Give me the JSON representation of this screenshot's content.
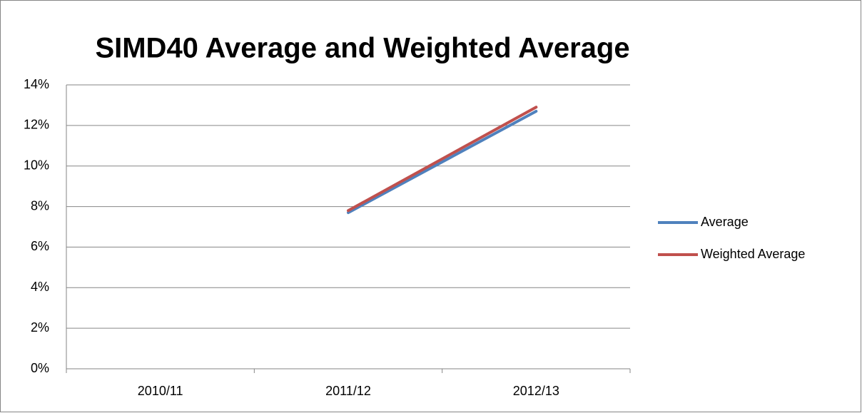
{
  "chart_data": {
    "type": "line",
    "title": "SIMD40 Average and Weighted Average",
    "categories": [
      "2010/11",
      "2011/12",
      "2012/13"
    ],
    "series": [
      {
        "name": "Average",
        "color": "#4f81bd",
        "values": [
          null,
          7.7,
          12.7
        ]
      },
      {
        "name": "Weighted Average",
        "color": "#c0504d",
        "values": [
          null,
          7.8,
          12.9
        ]
      }
    ],
    "ylim": [
      0,
      14
    ],
    "yticks": [
      {
        "value": 0,
        "label": "0%"
      },
      {
        "value": 2,
        "label": "2%"
      },
      {
        "value": 4,
        "label": "4%"
      },
      {
        "value": 6,
        "label": "6%"
      },
      {
        "value": 8,
        "label": "8%"
      },
      {
        "value": 10,
        "label": "10%"
      },
      {
        "value": 12,
        "label": "12%"
      },
      {
        "value": 14,
        "label": "14%"
      }
    ],
    "grid": true,
    "legend": "right"
  }
}
